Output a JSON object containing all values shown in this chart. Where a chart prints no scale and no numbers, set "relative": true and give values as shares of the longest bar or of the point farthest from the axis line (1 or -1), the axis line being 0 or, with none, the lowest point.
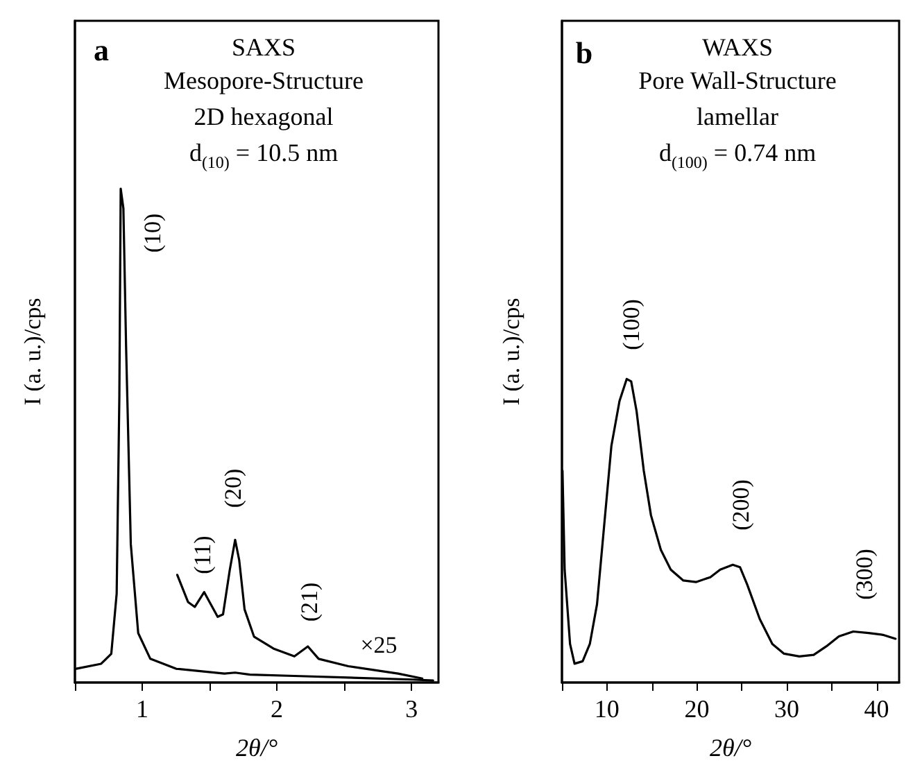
{
  "chart_data": [
    {
      "type": "line",
      "relative": true,
      "title": "SAXS",
      "subtitle": "Mesopore-Structure\n2D hexagonal\nd$_{(10)}$ = 10.5 nm",
      "xlabel": "2θ/°",
      "ylabel": "I (a. u.)/cps",
      "xlim": [
        0.5,
        3.2
      ],
      "xticks": [
        {
          "value": 0.5,
          "label": null
        },
        1,
        {
          "value": 1.5,
          "label": null
        },
        2,
        {
          "value": 2.5,
          "label": null
        },
        3
      ],
      "grid": false,
      "marker": "none",
      "line_style": "solid",
      "tick_labels": "x",
      "annotations": [
        "a",
        "(10)",
        "(11)",
        "(20)",
        "(21)",
        "×25"
      ],
      "series": [
        {
          "color": "#000000",
          "x": [
            0.51,
            0.695,
            0.77,
            0.81,
            0.83,
            0.84,
            0.86,
            0.88,
            0.915,
            0.97,
            1.06,
            1.25,
            1.61,
            1.69,
            1.8,
            2.17,
            2.53,
            3.01,
            3.16
          ],
          "values": [
            0.028,
            0.038,
            0.058,
            0.18,
            0.58,
            1.0,
            0.96,
            0.68,
            0.28,
            0.1,
            0.048,
            0.028,
            0.018,
            0.02,
            0.016,
            0.013,
            0.01,
            0.006,
            0.004
          ]
        },
        {
          "color": "#000000",
          "x": [
            1.26,
            1.34,
            1.39,
            1.46,
            1.5,
            1.56,
            1.6,
            1.65,
            1.69,
            1.72,
            1.76,
            1.83,
            1.98,
            2.13,
            2.23,
            2.31,
            2.53,
            2.9,
            3.08
          ],
          "values": [
            0.218,
            0.163,
            0.153,
            0.183,
            0.163,
            0.133,
            0.138,
            0.228,
            0.289,
            0.248,
            0.148,
            0.093,
            0.068,
            0.053,
            0.073,
            0.048,
            0.033,
            0.018,
            0.008
          ]
        }
      ]
    },
    {
      "type": "line",
      "relative": true,
      "title": "WAXS",
      "subtitle": "Pore Wall-Structure\nlamellar\nd$_{(100)}$ = 0.74 nm",
      "xlabel": "2θ/°",
      "ylabel": "I (a. u.)/cps",
      "xlim": [
        5,
        42.5
      ],
      "xticks": [
        {
          "value": 5,
          "label": null
        },
        10,
        {
          "value": 15,
          "label": null
        },
        20,
        {
          "value": 25,
          "label": null
        },
        30,
        {
          "value": 35,
          "label": null
        },
        40
      ],
      "grid": false,
      "marker": "none",
      "line_style": "solid",
      "tick_labels": "x",
      "annotations": [
        "b",
        "(100)",
        "(200)",
        "(300)"
      ],
      "series": [
        {
          "color": "#000000",
          "x": [
            5.06,
            5.3,
            5.9,
            6.4,
            7.3,
            8.1,
            8.9,
            9.7,
            10.5,
            11.4,
            12.2,
            12.7,
            13.3,
            14.1,
            14.9,
            16.0,
            17.1,
            18.5,
            19.9,
            21.5,
            22.6,
            24.0,
            24.8,
            25.6,
            27.0,
            28.4,
            29.7,
            31.4,
            33.0,
            34.4,
            35.8,
            37.4,
            39.1,
            40.7,
            42.1
          ],
          "values": [
            0.698,
            0.372,
            0.127,
            0.062,
            0.07,
            0.127,
            0.258,
            0.519,
            0.78,
            0.927,
            1.0,
            0.992,
            0.894,
            0.698,
            0.551,
            0.437,
            0.372,
            0.336,
            0.331,
            0.347,
            0.372,
            0.388,
            0.38,
            0.323,
            0.209,
            0.127,
            0.095,
            0.086,
            0.091,
            0.119,
            0.152,
            0.168,
            0.163,
            0.157,
            0.144
          ]
        }
      ]
    }
  ]
}
